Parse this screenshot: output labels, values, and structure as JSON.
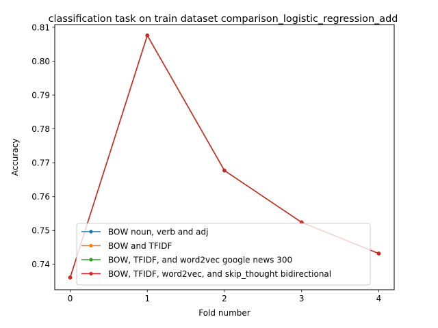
{
  "chart_data": {
    "type": "line",
    "title": "classification task on train dataset comparison_logistic_regression_add",
    "xlabel": "Fold number",
    "ylabel": "Accuracy",
    "x": [
      0,
      1,
      2,
      3,
      4
    ],
    "xlim": [
      -0.2,
      4.2
    ],
    "ylim": [
      0.7325,
      0.8108
    ],
    "xticks": [
      "0",
      "1",
      "2",
      "3",
      "4"
    ],
    "yticks": [
      0.74,
      0.75,
      0.76,
      0.77,
      0.78,
      0.79,
      0.8,
      0.81
    ],
    "ytick_labels": [
      "0.74",
      "0.75",
      "0.76",
      "0.77",
      "0.78",
      "0.79",
      "0.80",
      "0.81"
    ],
    "grid": false,
    "legend_position": "lower-center",
    "series": [
      {
        "name": "BOW noun, verb and adj",
        "color": "#1f77b4",
        "values": [
          0.7361,
          0.8076,
          0.7677,
          0.7524,
          0.7432
        ]
      },
      {
        "name": "BOW and TFIDF",
        "color": "#ff7f0e",
        "values": [
          0.7361,
          0.8076,
          0.7677,
          0.7524,
          0.7432
        ]
      },
      {
        "name": "BOW, TFIDF, and word2vec google news 300",
        "color": "#2ca02c",
        "values": [
          0.7361,
          0.8076,
          0.7677,
          0.7524,
          0.7432
        ]
      },
      {
        "name": "BOW, TFIDF, word2vec, and skip_thought bidirectional",
        "color": "#d62728",
        "values": [
          0.7361,
          0.8076,
          0.7677,
          0.7524,
          0.7432
        ]
      }
    ]
  }
}
